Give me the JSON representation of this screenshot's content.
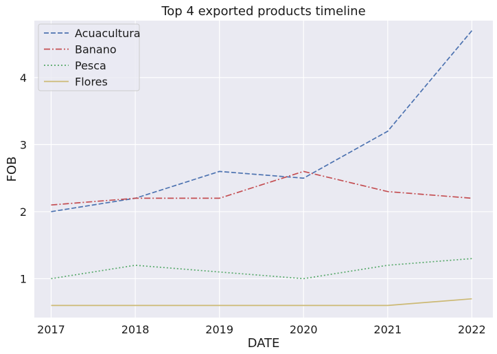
{
  "chart_data": {
    "type": "line",
    "title": "Top 4 exported products timeline",
    "xlabel": "DATE",
    "ylabel": "FOB",
    "x": [
      2017,
      2018,
      2019,
      2020,
      2021,
      2022
    ],
    "xlim": [
      2016.8,
      2022.25
    ],
    "ylim": [
      0.42,
      4.85
    ],
    "yticks": [
      1,
      2,
      3,
      4
    ],
    "grid": true,
    "legend_position": "top-left",
    "series": [
      {
        "name": "Acuacultura",
        "values": [
          2.0,
          2.2,
          2.6,
          2.5,
          3.2,
          4.7
        ],
        "color": "#4c72b0",
        "dash": "dashed"
      },
      {
        "name": "Banano",
        "values": [
          2.1,
          2.2,
          2.2,
          2.6,
          2.3,
          2.2
        ],
        "color": "#c44e52",
        "dash": "dashdot"
      },
      {
        "name": "Pesca",
        "values": [
          1.0,
          1.2,
          1.1,
          1.0,
          1.2,
          1.3
        ],
        "color": "#55a868",
        "dash": "dotted"
      },
      {
        "name": "Flores",
        "values": [
          0.6,
          0.6,
          0.6,
          0.6,
          0.6,
          0.7
        ],
        "color": "#ccb974",
        "dash": "solid"
      }
    ]
  }
}
